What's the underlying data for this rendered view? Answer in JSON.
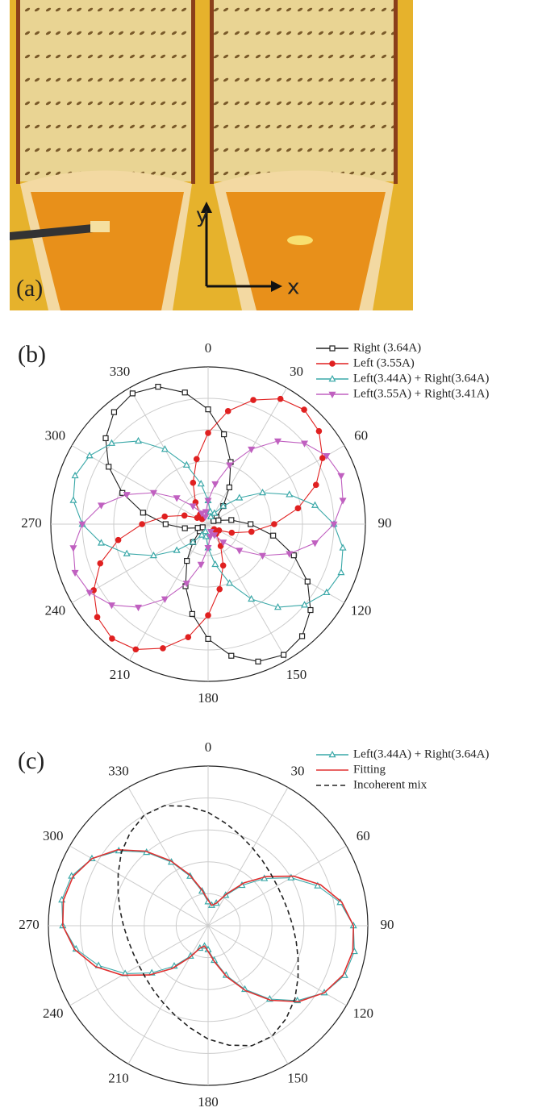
{
  "panel_a": {
    "label": "(a)",
    "axis_y": "y",
    "axis_x": "x"
  },
  "chart_data": [
    {
      "type": "polar",
      "panel_label": "(b)",
      "theta": [
        0,
        10,
        20,
        30,
        40,
        50,
        60,
        70,
        80,
        90,
        100,
        110,
        120,
        130,
        140,
        150,
        160,
        170,
        180,
        190,
        200,
        210,
        220,
        230,
        240,
        250,
        260,
        270,
        280,
        290,
        300,
        310,
        320,
        330,
        340,
        350
      ],
      "thetaticks": [
        0,
        30,
        60,
        90,
        120,
        150,
        180,
        210,
        240,
        270,
        300,
        330
      ],
      "rlim": [
        0,
        1
      ],
      "rticks": [
        0.2,
        0.4,
        0.6,
        0.8,
        1
      ],
      "grid": true,
      "legend": "upper right",
      "series": [
        {
          "name": "Right (3.64A)",
          "color": "#222222",
          "marker": "square-open",
          "values": [
            0.73,
            0.58,
            0.42,
            0.27,
            0.15,
            0.07,
            0.04,
            0.07,
            0.15,
            0.27,
            0.42,
            0.58,
            0.73,
            0.85,
            0.93,
            0.96,
            0.93,
            0.85,
            0.73,
            0.58,
            0.42,
            0.27,
            0.15,
            0.07,
            0.04,
            0.07,
            0.15,
            0.27,
            0.42,
            0.58,
            0.73,
            0.85,
            0.93,
            0.96,
            0.93,
            0.85
          ]
        },
        {
          "name": "Left (3.55A)",
          "color": "#e02020",
          "marker": "circle-filled",
          "values": [
            0.58,
            0.73,
            0.84,
            0.92,
            0.95,
            0.92,
            0.84,
            0.73,
            0.58,
            0.42,
            0.28,
            0.16,
            0.08,
            0.05,
            0.08,
            0.16,
            0.28,
            0.42,
            0.58,
            0.73,
            0.84,
            0.92,
            0.95,
            0.92,
            0.84,
            0.73,
            0.58,
            0.42,
            0.28,
            0.16,
            0.08,
            0.05,
            0.08,
            0.16,
            0.28,
            0.42
          ]
        },
        {
          "name": "Left(3.44A) + Right(3.64A)",
          "color": "#3aa8a8",
          "marker": "triangle-open",
          "values": [
            0.15,
            0.08,
            0.05,
            0.08,
            0.15,
            0.26,
            0.4,
            0.55,
            0.69,
            0.8,
            0.87,
            0.9,
            0.87,
            0.8,
            0.69,
            0.55,
            0.4,
            0.26,
            0.15,
            0.08,
            0.05,
            0.08,
            0.15,
            0.26,
            0.4,
            0.55,
            0.69,
            0.8,
            0.87,
            0.9,
            0.87,
            0.8,
            0.69,
            0.55,
            0.4,
            0.26
          ]
        },
        {
          "name": "Left(3.55A) + Right(3.41A)",
          "color": "#c060c0",
          "marker": "triangle-down-filled",
          "values": [
            0.15,
            0.26,
            0.4,
            0.55,
            0.69,
            0.8,
            0.87,
            0.9,
            0.87,
            0.8,
            0.69,
            0.55,
            0.4,
            0.26,
            0.15,
            0.08,
            0.05,
            0.08,
            0.15,
            0.26,
            0.4,
            0.55,
            0.69,
            0.8,
            0.87,
            0.9,
            0.87,
            0.8,
            0.69,
            0.55,
            0.4,
            0.26,
            0.15,
            0.08,
            0.05,
            0.08
          ]
        }
      ]
    },
    {
      "type": "polar",
      "panel_label": "(c)",
      "theta": [
        0,
        10,
        20,
        30,
        40,
        50,
        60,
        70,
        80,
        90,
        100,
        110,
        120,
        130,
        140,
        150,
        160,
        170,
        180,
        190,
        200,
        210,
        220,
        230,
        240,
        250,
        260,
        270,
        280,
        290,
        300,
        310,
        320,
        330,
        340,
        350
      ],
      "thetaticks": [
        0,
        30,
        60,
        90,
        120,
        150,
        180,
        210,
        240,
        270,
        300,
        330
      ],
      "rlim": [
        0,
        1
      ],
      "rticks": [
        0.2,
        0.4,
        0.6,
        0.8,
        1
      ],
      "grid": true,
      "legend": "upper right",
      "series": [
        {
          "name": "Left(3.44A) + Right(3.64A)",
          "color": "#3aa8a8",
          "marker": "triangle-open",
          "values": [
            0.15,
            0.13,
            0.15,
            0.22,
            0.33,
            0.46,
            0.6,
            0.73,
            0.84,
            0.91,
            0.93,
            0.91,
            0.84,
            0.73,
            0.6,
            0.46,
            0.33,
            0.22,
            0.15,
            0.13,
            0.15,
            0.22,
            0.33,
            0.46,
            0.6,
            0.73,
            0.84,
            0.91,
            0.93,
            0.91,
            0.84,
            0.73,
            0.6,
            0.46,
            0.33,
            0.22
          ]
        },
        {
          "name": "Fitting",
          "color": "#e03030",
          "marker": "none",
          "values": [
            0.16,
            0.13,
            0.15,
            0.23,
            0.35,
            0.48,
            0.62,
            0.75,
            0.85,
            0.91,
            0.92,
            0.9,
            0.84,
            0.74,
            0.61,
            0.47,
            0.34,
            0.23,
            0.16,
            0.13,
            0.15,
            0.23,
            0.35,
            0.48,
            0.62,
            0.75,
            0.85,
            0.91,
            0.92,
            0.9,
            0.84,
            0.74,
            0.61,
            0.47,
            0.34,
            0.23
          ]
        },
        {
          "name": "Incoherent mix",
          "color": "#222222",
          "marker": "none",
          "dash": true,
          "values": [
            0.71,
            0.65,
            0.6,
            0.56,
            0.53,
            0.51,
            0.5,
            0.5,
            0.51,
            0.53,
            0.56,
            0.6,
            0.65,
            0.71,
            0.76,
            0.8,
            0.8,
            0.76,
            0.71,
            0.65,
            0.6,
            0.56,
            0.53,
            0.51,
            0.5,
            0.5,
            0.51,
            0.53,
            0.56,
            0.6,
            0.65,
            0.71,
            0.76,
            0.8,
            0.8,
            0.76
          ]
        }
      ]
    }
  ]
}
